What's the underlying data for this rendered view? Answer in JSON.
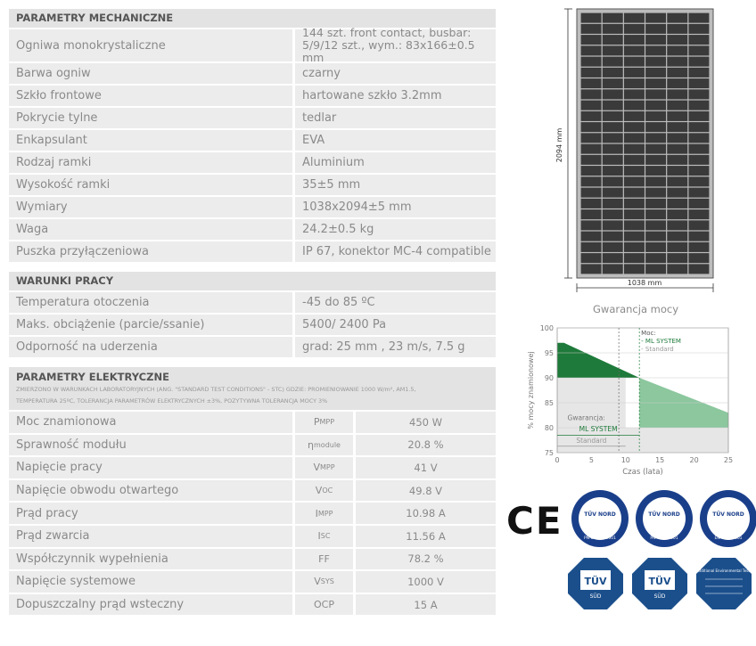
{
  "mechanical": {
    "title": "PARAMETRY MECHANICZNE",
    "rows": [
      {
        "label": "Ogniwa  monokrystaliczne",
        "value": "144 szt. front contact, busbar: 5/9/12 szt., wym.: 83x166±0.5 mm"
      },
      {
        "label": "Barwa ogniw",
        "value": "czarny"
      },
      {
        "label": "Szkło frontowe",
        "value": "hartowane szkło 3.2mm"
      },
      {
        "label": "Pokrycie tylne",
        "value": "tedlar"
      },
      {
        "label": "Enkapsulant",
        "value": "EVA"
      },
      {
        "label": "Rodzaj ramki",
        "value": "Aluminium"
      },
      {
        "label": "Wysokość ramki",
        "value": "35±5 mm"
      },
      {
        "label": "Wymiary",
        "value": "1038x2094±5 mm"
      },
      {
        "label": "Waga",
        "value": "24.2±0.5 kg"
      },
      {
        "label": "Puszka przyłączeniowa",
        "value": "IP 67, konektor MC-4 compatible"
      }
    ]
  },
  "work": {
    "title": "WARUNKI PRACY",
    "rows": [
      {
        "label": "Temperatura otoczenia",
        "value": "-45 do 85 ºC"
      },
      {
        "label": "Maks. obciążenie (parcie/ssanie)",
        "value": "5400/ 2400 Pa"
      },
      {
        "label": "Odporność na uderzenia",
        "value": "grad: 25 mm , 23 m/s, 7.5 g"
      }
    ]
  },
  "electrical": {
    "title": "PARAMETRY ELEKTRYCZNE",
    "note1": "ZMIERZONO W WARUNKACH LABORATORYJNYCH (ANG. \"STANDARD TEST CONDITIONS\" - STC) GDZIE: PROMIENIOWANIE 1000 W/m², AM1.5,",
    "note2": "TEMPERATURA 25ºC, TOLERANCJA PARAMETRÓW ELEKTRYCZNYCH ±3%, POZYTYWNA TOLERANCJA MOCY 3%",
    "rows": [
      {
        "label": "Moc znamionowa",
        "sym": "P",
        "sub": "MPP",
        "value": "450 W"
      },
      {
        "label": "Sprawność modułu",
        "sym": "η",
        "sub": "module",
        "value": "20.8 %"
      },
      {
        "label": "Napięcie pracy",
        "sym": "V",
        "sub": "MPP",
        "value": "41 V"
      },
      {
        "label": "Napięcie obwodu otwartego",
        "sym": "V",
        "sub": "OC",
        "value": "49.8 V"
      },
      {
        "label": "Prąd pracy",
        "sym": "I",
        "sub": "MPP",
        "value": "10.98 A"
      },
      {
        "label": "Prąd zwarcia",
        "sym": "I",
        "sub": "SC",
        "value": "11.56 A"
      },
      {
        "label": "Współczynnik wypełnienia",
        "sym": "FF",
        "sub": "",
        "value": "78.2 %"
      },
      {
        "label": "Napięcie systemowe",
        "sym": "V",
        "sub": "SYS",
        "value": "1000 V"
      },
      {
        "label": "Dopuszczalny prąd wsteczny",
        "sym": "OCP",
        "sub": "",
        "value": "15 A"
      }
    ]
  },
  "panel": {
    "height_label": "2094 mm",
    "width_label": "1038 mm"
  },
  "chart_data": {
    "type": "area",
    "title": "Gwarancja mocy",
    "xlabel": "Czas (lata)",
    "ylabel": "% mocy znamionowej",
    "xlim": [
      0,
      25
    ],
    "ylim": [
      75,
      100
    ],
    "xticks": [
      0,
      5,
      10,
      15,
      20,
      25
    ],
    "yticks": [
      75,
      80,
      85,
      90,
      95,
      100
    ],
    "legend_title": "Moc:",
    "series": [
      {
        "name": "ML SYSTEM",
        "x": [
          0,
          1,
          12,
          25
        ],
        "y": [
          97,
          97,
          90,
          83
        ],
        "color": "#1e7a3a"
      },
      {
        "name": "Standard",
        "x": [
          0,
          10,
          10,
          25
        ],
        "y": [
          90,
          90,
          80,
          80
        ],
        "color": "#d9d9d9"
      }
    ],
    "annotation_title": "Gwarancja:",
    "annotation_ml": "ML SYSTEM",
    "annotation_std": "Standard",
    "ml_years": 12,
    "std_years": 10
  },
  "certs": {
    "ce": "CE",
    "tuv_nord_label": "TÜV NORD",
    "tuv_nord_1": "PN-EN ISO 9001",
    "tuv_nord_2": "PN-ISO 45001",
    "tuv_nord_3": "EN ISO 50001",
    "tuv_sud_label": "TÜV",
    "tuv_sud_sub": "SÜD",
    "tuv_extra": "Additional Environmental Tests"
  }
}
